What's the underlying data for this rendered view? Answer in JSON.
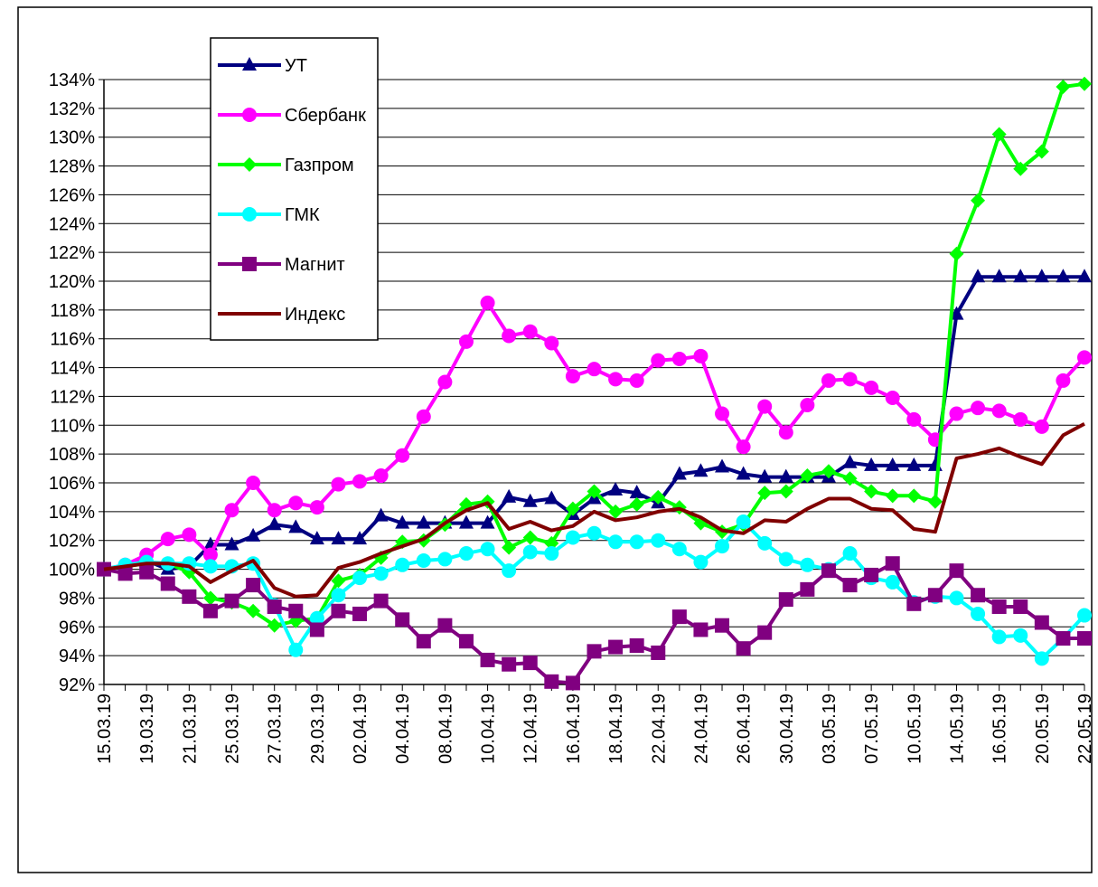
{
  "chart_data": {
    "type": "line",
    "categories": [
      "15.03.19",
      null,
      "19.03.19",
      null,
      "21.03.19",
      null,
      "25.03.19",
      null,
      "27.03.19",
      null,
      "29.03.19",
      null,
      "02.04.19",
      null,
      "04.04.19",
      null,
      "08.04.19",
      null,
      "10.04.19",
      null,
      "12.04.19",
      null,
      "16.04.19",
      null,
      "18.04.19",
      null,
      "22.04.19",
      null,
      "24.04.19",
      null,
      "26.04.19",
      null,
      "30.04.19",
      null,
      "03.05.19",
      null,
      "07.05.19",
      null,
      "10.05.19",
      null,
      "14.05.19",
      null,
      "16.05.19",
      null,
      "20.05.19",
      null,
      "22.05.19"
    ],
    "ylim": [
      92,
      134
    ],
    "yticks": [
      {
        "value": 92,
        "label": "92%"
      },
      {
        "value": 94,
        "label": "94%"
      },
      {
        "value": 96,
        "label": "96%"
      },
      {
        "value": 98,
        "label": "98%"
      },
      {
        "value": 100,
        "label": "100%"
      },
      {
        "value": 102,
        "label": "102%"
      },
      {
        "value": 104,
        "label": "104%"
      },
      {
        "value": 106,
        "label": "106%"
      },
      {
        "value": 108,
        "label": "108%"
      },
      {
        "value": 110,
        "label": "110%"
      },
      {
        "value": 112,
        "label": "112%"
      },
      {
        "value": 114,
        "label": "114%"
      },
      {
        "value": 116,
        "label": "116%"
      },
      {
        "value": 118,
        "label": "118%"
      },
      {
        "value": 120,
        "label": "120%"
      },
      {
        "value": 122,
        "label": "122%"
      },
      {
        "value": 124,
        "label": "124%"
      },
      {
        "value": 126,
        "label": "126%"
      },
      {
        "value": 128,
        "label": "128%"
      },
      {
        "value": 130,
        "label": "130%"
      },
      {
        "value": 132,
        "label": "132%"
      },
      {
        "value": 134,
        "label": "134%"
      }
    ],
    "grid": true,
    "legend": "top-left",
    "series": [
      {
        "name": "УТ",
        "color": "#000080",
        "marker": "triangle",
        "values": [
          100,
          100.2,
          100.6,
          100.0,
          100.2,
          101.7,
          101.7,
          102.3,
          103.1,
          102.9,
          102.1,
          102.1,
          102.1,
          103.7,
          103.2,
          103.2,
          103.2,
          103.2,
          103.2,
          105.0,
          104.7,
          104.9,
          103.8,
          104.9,
          105.5,
          105.3,
          104.6,
          106.6,
          106.8,
          107.1,
          106.6,
          106.4,
          106.4,
          106.4,
          106.4,
          107.4,
          107.2,
          107.2,
          107.2,
          107.2,
          117.7,
          120.3,
          120.3,
          120.3,
          120.3,
          120.3,
          120.3
        ]
      },
      {
        "name": "Сбербанк",
        "color": "#ff00ff",
        "marker": "circle",
        "values": [
          100,
          100.3,
          101,
          102.1,
          102.4,
          101,
          104.1,
          106,
          104.1,
          104.6,
          104.3,
          105.9,
          106.1,
          106.5,
          107.9,
          110.6,
          113,
          115.8,
          118.5,
          116.2,
          116.5,
          115.7,
          113.4,
          113.9,
          113.2,
          113.1,
          114.5,
          114.6,
          114.8,
          110.8,
          108.5,
          111.3,
          109.5,
          111.4,
          113.1,
          113.2,
          112.6,
          111.9,
          110.4,
          109,
          110.8,
          111.2,
          111,
          110.4,
          109.9,
          113.1,
          114.7
        ]
      },
      {
        "name": "Газпром",
        "color": "#00ff00",
        "marker": "diamond",
        "values": [
          100,
          100.2,
          100.4,
          100.4,
          99.8,
          98,
          97.7,
          97.1,
          96.1,
          96.4,
          96.6,
          99.2,
          99.6,
          100.8,
          101.9,
          102,
          103.1,
          104.5,
          104.7,
          101.5,
          102.2,
          101.8,
          104.2,
          105.4,
          104,
          104.5,
          105,
          104.3,
          103.2,
          102.6,
          103.1,
          105.3,
          105.4,
          106.5,
          106.8,
          106.3,
          105.4,
          105.1,
          105.1,
          104.7,
          121.9,
          125.6,
          130.2,
          127.8,
          129,
          133.5,
          133.7
        ]
      },
      {
        "name": "ГМК",
        "color": "#00ffff",
        "marker": "circle",
        "values": [
          100,
          100.3,
          100.5,
          100.4,
          100.4,
          100.2,
          100.2,
          100.4,
          97.5,
          94.4,
          96.6,
          98.2,
          99.4,
          99.7,
          100.3,
          100.6,
          100.7,
          101.1,
          101.4,
          99.9,
          101.2,
          101.1,
          102.2,
          102.5,
          101.9,
          101.9,
          102,
          101.4,
          100.5,
          101.6,
          103.3,
          101.8,
          100.7,
          100.3,
          100,
          101.1,
          99.4,
          99.1,
          97.7,
          98.1,
          98,
          96.9,
          95.3,
          95.4,
          93.8,
          95.2,
          96.8
        ]
      },
      {
        "name": "Магнит",
        "color": "#800080",
        "marker": "square",
        "values": [
          100,
          99.7,
          99.8,
          99,
          98.1,
          97.1,
          97.8,
          98.9,
          97.4,
          97.1,
          95.8,
          97.1,
          96.9,
          97.8,
          96.5,
          95,
          96.1,
          95,
          93.7,
          93.4,
          93.5,
          92.2,
          92.1,
          94.3,
          94.6,
          94.7,
          94.2,
          96.7,
          95.8,
          96.1,
          94.5,
          95.6,
          97.9,
          98.6,
          99.9,
          98.9,
          99.6,
          100.4,
          97.6,
          98.2,
          99.9,
          98.2,
          97.4,
          97.4,
          96.3,
          95.2,
          95.2
        ]
      },
      {
        "name": "Индекс",
        "color": "#800000",
        "values": [
          100,
          100.2,
          100.4,
          100.4,
          100.2,
          99.1,
          99.9,
          100.6,
          98.7,
          98.1,
          98.2,
          100.1,
          100.5,
          101.1,
          101.6,
          102.1,
          103.2,
          104.1,
          104.6,
          102.8,
          103.3,
          102.7,
          103,
          104,
          103.4,
          103.6,
          104,
          104.2,
          103.6,
          102.7,
          102.5,
          103.4,
          103.3,
          104.2,
          104.9,
          104.9,
          104.2,
          104.1,
          102.8,
          102.6,
          107.7,
          108,
          108.4,
          107.8,
          107.3,
          109.3,
          110.1
        ]
      }
    ]
  }
}
